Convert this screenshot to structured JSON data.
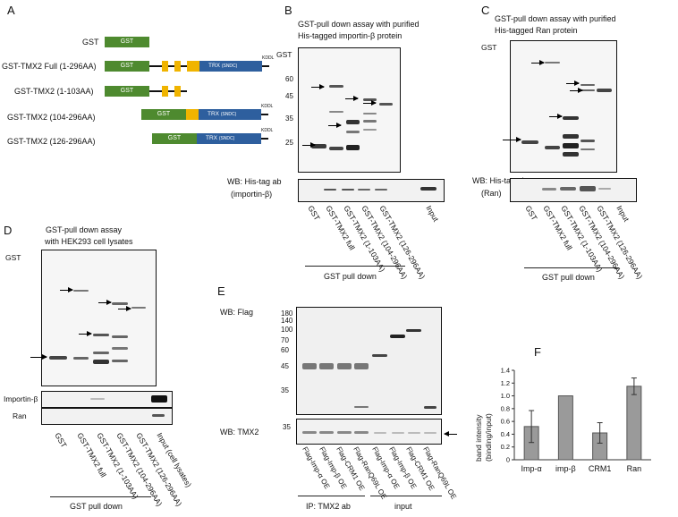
{
  "panels": {
    "a": "A",
    "b": "B",
    "c": "C",
    "d": "D",
    "e": "E",
    "f": "F"
  },
  "panelA": {
    "gst_box": "GST",
    "trx_box": "TRX",
    "trx_sub": "(SNDC)",
    "kdel": "KDDL",
    "constructs": [
      "GST",
      "GST-TMX2 Full (1-296AA)",
      "GST-TMX2 (1-103AA)",
      "GST-TMX2 (104-296AA)",
      "GST-TMX2 (126-296AA)"
    ]
  },
  "panelB": {
    "title_line1": "GST-pull down assay with purified",
    "title_line2": "His-tagged importin-β protein",
    "gst_label": "GST",
    "mw": [
      "60",
      "45",
      "35",
      "25"
    ],
    "wb_line1": "WB: His-tag ab",
    "wb_line2": "(importin-β)",
    "lanes": [
      "GST",
      "GST-TMX2 full",
      "GST-TMX2 (1-103AA)",
      "GST-TMX2 (104-296AA)",
      "GST-TMX2 (126-296AA)",
      "Input"
    ],
    "footer": "GST pull down"
  },
  "panelC": {
    "title_line1": "GST-pull down assay with purified",
    "title_line2": "His-tagged Ran protein",
    "gst_label": "GST",
    "wb_line1": "WB: His-tag ab",
    "wb_line2": "(Ran)",
    "lanes": [
      "GST",
      "GST-TMX2 full",
      "GST-TMX2 (1-103AA)",
      "GST-TMX2 (104-296AA)",
      "GST-TMX2 (126-296AA)",
      "Input"
    ],
    "footer": "GST pull down"
  },
  "panelD": {
    "title_line1": "GST-pull down assay",
    "title_line2": "with HEK293 cell lysates",
    "gst_label": "GST",
    "row1": "Importin-β",
    "row2": "Ran",
    "lanes": [
      "GST",
      "GST-TMX2 full",
      "GST-TMX2 (1-103AA)",
      "GST-TMX2 (104-296AA)",
      "GST-TMX2 (126-296AA)",
      "Input (cell lysates)"
    ],
    "footer": "GST pull down"
  },
  "panelE": {
    "wb_flag": "WB: Flag",
    "wb_tmx2": "WB: TMX2",
    "mw_top": [
      "180",
      "140",
      "100",
      "70",
      "60",
      "45",
      "35"
    ],
    "mw_bottom": [
      "35"
    ],
    "lanes": [
      "Flag-Imp-α OE",
      "Flag-Imp-β OE",
      "Flag-CRM1 OE",
      "Flag-RanQ69L OE",
      "Flag-Imp-α OE",
      "Flag-Imp-β OE",
      "Flag-CRM1 OE",
      "Flag-RanQ69L OE"
    ],
    "footer_left": "IP: TMX2 ab",
    "footer_right": "input"
  },
  "chart_data": {
    "type": "bar",
    "title": "",
    "xlabel": "",
    "ylabel": "band intensity (binding/input)",
    "ylabel_line1": "band intensity",
    "ylabel_line2": "(binding/input)",
    "categories": [
      "Imp-α",
      "imp-β",
      "CRM1",
      "Ran"
    ],
    "values": [
      0.52,
      1.0,
      0.42,
      1.15
    ],
    "errors": [
      0.25,
      0.0,
      0.16,
      0.13
    ],
    "ylim": [
      0,
      1.4
    ],
    "yticks": [
      "0",
      "0.2",
      "0.4",
      "0.6",
      "0.8",
      "1.0",
      "1.2",
      "1.4"
    ],
    "grid": false,
    "colors": {
      "bar": "#9a9a9a"
    }
  }
}
